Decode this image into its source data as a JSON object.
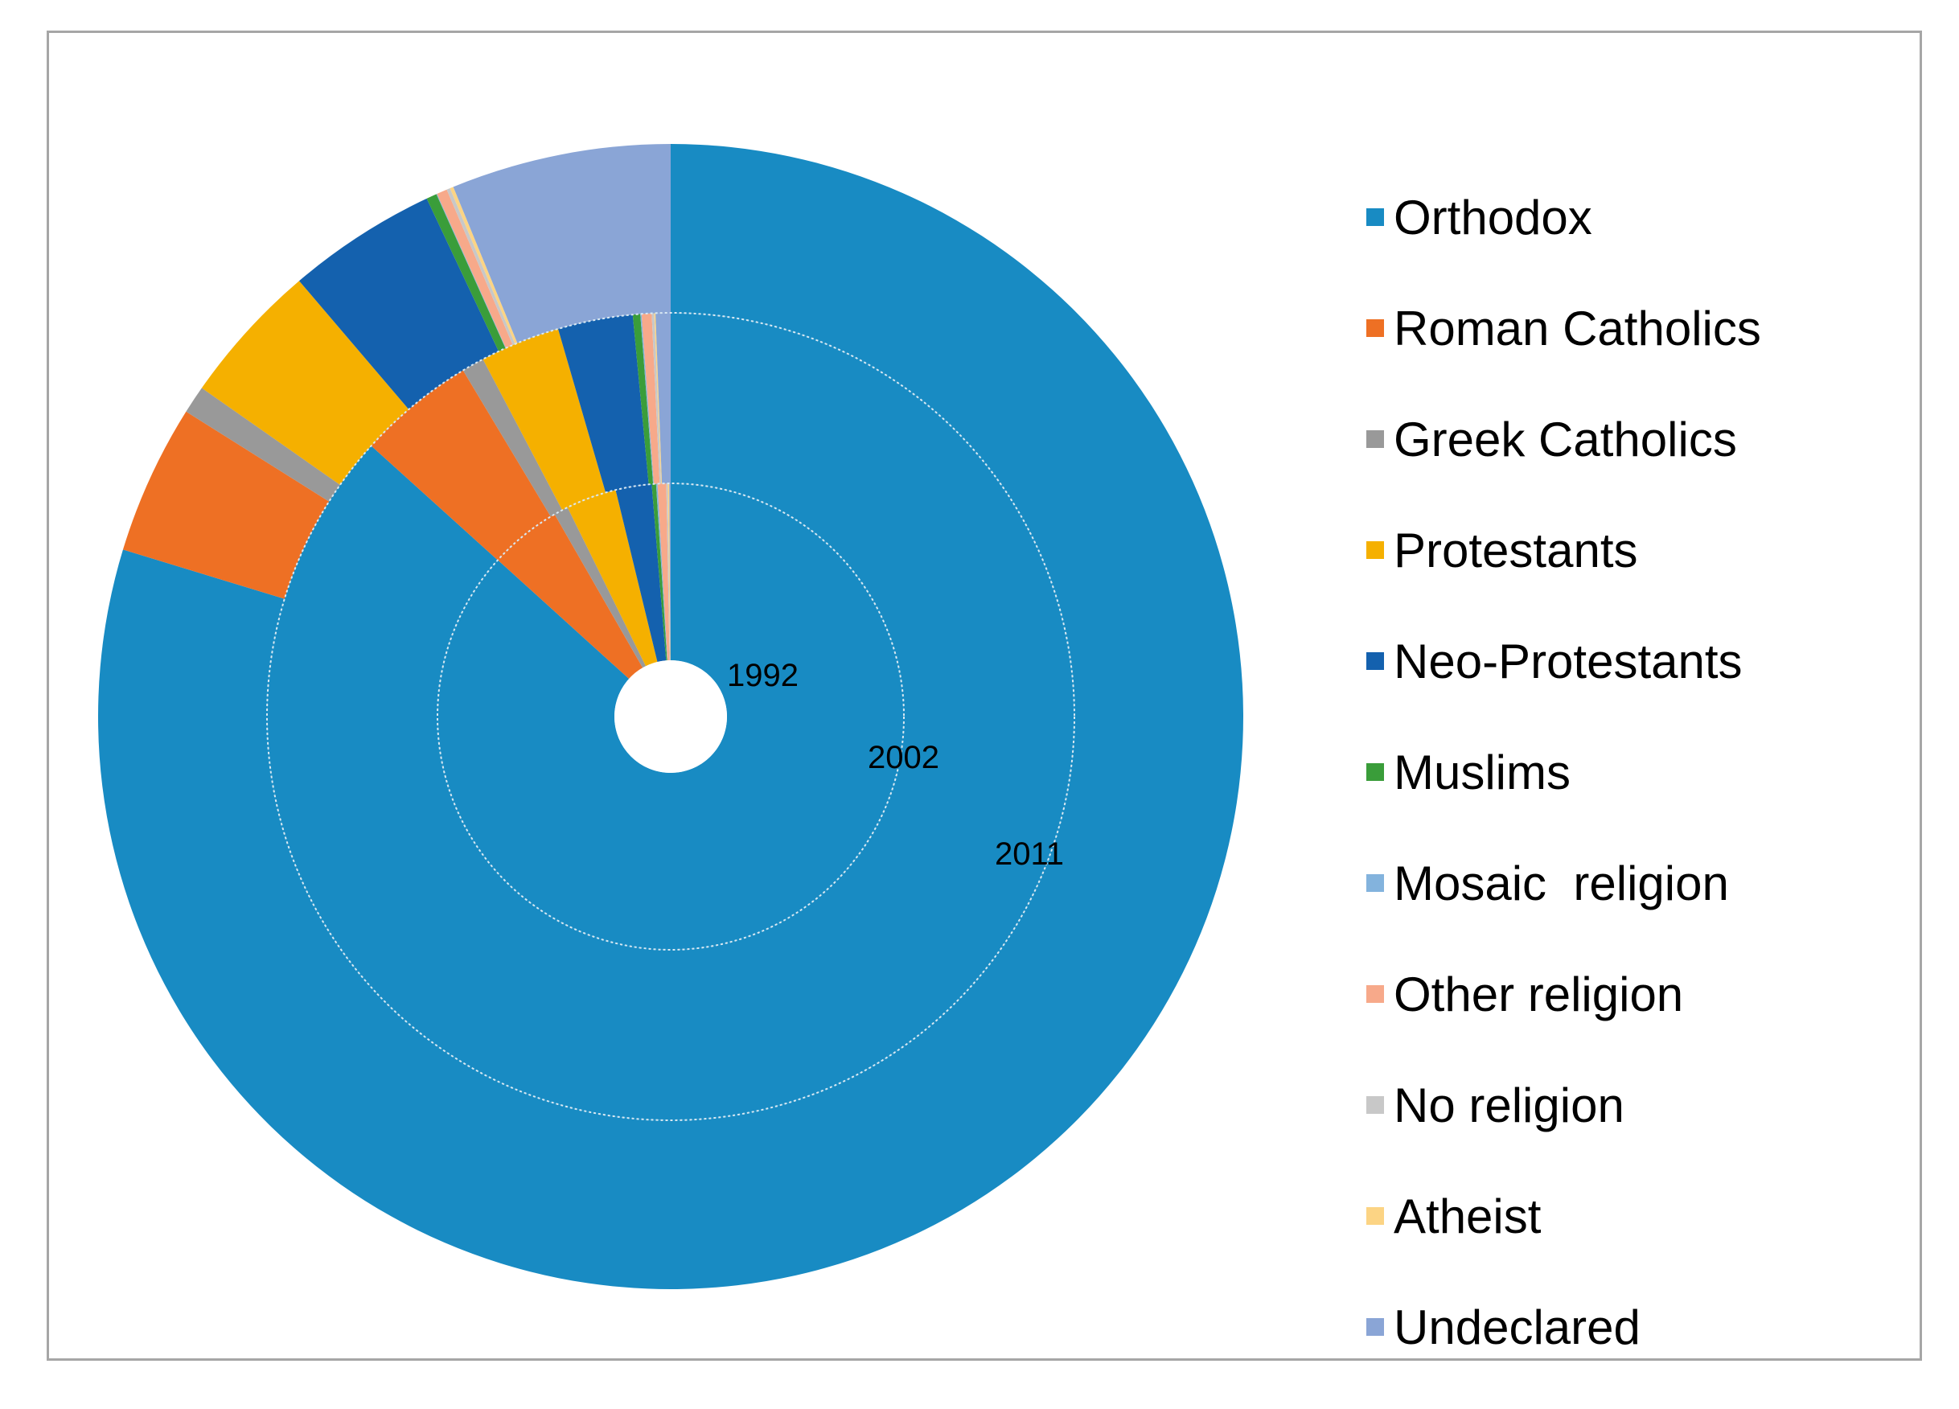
{
  "chart_data": {
    "type": "pie",
    "categories": [
      "Orthodox",
      "Roman Catholics",
      "Greek Catholics",
      "Protestants",
      "Neo-Protestants",
      "Muslims",
      "Mosaic  religion",
      "Other religion",
      "No religion",
      "Atheist",
      "Undeclared"
    ],
    "colors": [
      "#188bc3",
      "#ee7024",
      "#999999",
      "#f5b000",
      "#1461ae",
      "#3a9d3a",
      "#83b3dd",
      "#f7a98a",
      "#c8c8c8",
      "#fcd484",
      "#8aa5d6"
    ],
    "series": [
      {
        "name": "1992",
        "values": [
          86.8,
          5.0,
          1.0,
          3.5,
          2.5,
          0.3,
          0.1,
          0.6,
          0.1,
          0.1,
          0.1
        ]
      },
      {
        "name": "2002",
        "values": [
          86.7,
          4.7,
          0.9,
          3.2,
          3.0,
          0.3,
          0.05,
          0.4,
          0.1,
          0.05,
          0.6
        ]
      },
      {
        "name": "2011",
        "values": [
          81.0,
          4.3,
          0.8,
          4.1,
          4.3,
          0.3,
          0.02,
          0.3,
          0.1,
          0.1,
          6.3
        ]
      }
    ],
    "ring_labels": [
      "1992",
      "2002",
      "2011"
    ],
    "legend_position": "right"
  }
}
